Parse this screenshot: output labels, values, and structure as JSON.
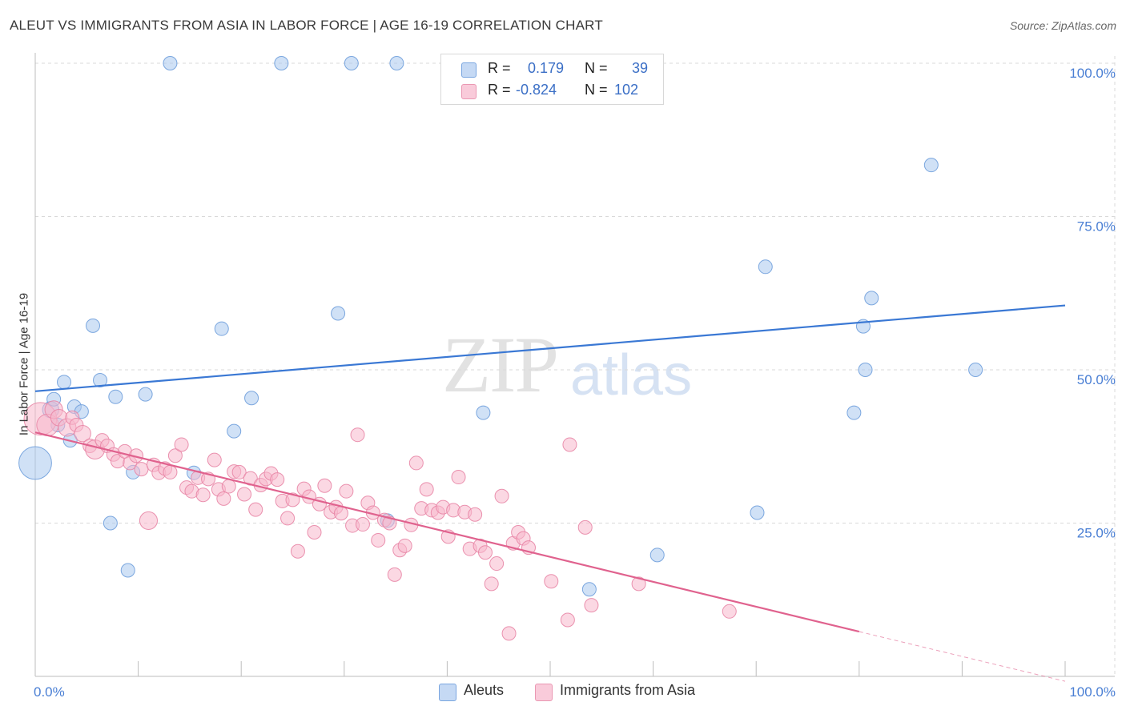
{
  "header": {
    "title": "ALEUT VS IMMIGRANTS FROM ASIA IN LABOR FORCE | AGE 16-19 CORRELATION CHART",
    "source": "Source: ZipAtlas.com"
  },
  "watermark": {
    "zip": "ZIP",
    "atlas": "atlas"
  },
  "legend": {
    "aleut": {
      "r_label": "R =",
      "r_value": "0.179",
      "n_label": "N =",
      "n_value": "39"
    },
    "asia": {
      "r_label": "R =",
      "r_value": "-0.824",
      "n_label": "N =",
      "n_value": "102"
    }
  },
  "bottom_legend": {
    "aleut": "Aleuts",
    "asia": "Immigrants from Asia"
  },
  "colors": {
    "aleut_fill": "#aac8ef",
    "aleut_stroke": "#6f9fdc",
    "aleut_line": "#3a78d4",
    "asia_fill": "#f7b8cc",
    "asia_stroke": "#e886a6",
    "asia_line": "#e0628e",
    "axis_text": "#4a7fd4",
    "grid": "#d9d9d9"
  },
  "chart_data": {
    "type": "scatter",
    "title": "ALEUT VS IMMIGRANTS FROM ASIA IN LABOR FORCE | AGE 16-19 CORRELATION CHART",
    "xlabel": "",
    "ylabel": "In Labor Force | Age 16-19",
    "xlim": [
      0,
      100
    ],
    "ylim": [
      0,
      102
    ],
    "x_tick_labels": [
      "0.0%",
      "100.0%"
    ],
    "y_ticks": [
      25,
      50,
      75,
      100
    ],
    "y_tick_labels": [
      "25.0%",
      "50.0%",
      "75.0%",
      "100.0%"
    ],
    "series": [
      {
        "name": "Aleuts",
        "r": 0.179,
        "n": 39,
        "trend": {
          "x0": 0,
          "y0": 46.5,
          "x1": 100,
          "y1": 60.5
        },
        "points": [
          [
            0,
            34.8,
            2.4
          ],
          [
            1.5,
            43.5,
            1.2
          ],
          [
            1.8,
            45.2,
            1.0
          ],
          [
            2.2,
            41,
            1.0
          ],
          [
            2.8,
            48,
            1.0
          ],
          [
            3.4,
            38.5,
            1.0
          ],
          [
            3.8,
            44,
            1.0
          ],
          [
            4.5,
            43.2,
            1.0
          ],
          [
            5.6,
            57.2,
            1.0
          ],
          [
            6.3,
            48.3,
            1.0
          ],
          [
            7.3,
            25,
            1.0
          ],
          [
            7.8,
            45.6,
            1.0
          ],
          [
            9.0,
            17.3,
            1.0
          ],
          [
            9.5,
            33.3,
            1.0
          ],
          [
            10.7,
            46,
            1.0
          ],
          [
            13.1,
            100,
            1.0
          ],
          [
            15.4,
            33.2,
            1.0
          ],
          [
            18.1,
            56.7,
            1.0
          ],
          [
            19.3,
            40,
            1.0
          ],
          [
            21.0,
            45.4,
            1.0
          ],
          [
            23.9,
            100,
            1.0
          ],
          [
            29.4,
            59.2,
            1.0
          ],
          [
            30.7,
            100,
            1.0
          ],
          [
            34.2,
            25.4,
            1.0
          ],
          [
            35.1,
            100,
            1.0
          ],
          [
            43.5,
            43,
            1.0
          ],
          [
            53.8,
            14.2,
            1.0
          ],
          [
            60.4,
            19.8,
            1.0
          ],
          [
            70.1,
            26.7,
            1.0
          ],
          [
            70.9,
            66.8,
            1.0
          ],
          [
            79.5,
            43,
            1.0
          ],
          [
            80.4,
            57.1,
            1.0
          ],
          [
            80.6,
            50,
            1.0
          ],
          [
            81.2,
            61.7,
            1.0
          ],
          [
            87.0,
            83.4,
            1.0
          ],
          [
            91.3,
            50,
            1.0
          ]
        ]
      },
      {
        "name": "Immigrants from Asia",
        "r": -0.824,
        "n": 102,
        "trend": {
          "x0": 0,
          "y0": 39.8,
          "x1": 80,
          "y1": 7.3,
          "dash_to_x": 100,
          "dash_to_y": -0.8
        },
        "points": [
          [
            0.5,
            42,
            2.4
          ],
          [
            1.2,
            41,
            1.6
          ],
          [
            1.8,
            43.5,
            1.3
          ],
          [
            2.3,
            42.2,
            1.2
          ],
          [
            3.1,
            40.6,
            1.3
          ],
          [
            3.6,
            42.2,
            1.0
          ],
          [
            4.0,
            41,
            1.0
          ],
          [
            4.6,
            39.6,
            1.2
          ],
          [
            5.3,
            37.6,
            1.0
          ],
          [
            5.8,
            37,
            1.4
          ],
          [
            6.5,
            38.5,
            1.0
          ],
          [
            7.0,
            37.6,
            1.0
          ],
          [
            7.6,
            36.2,
            1.0
          ],
          [
            8.0,
            35.1,
            1.0
          ],
          [
            8.7,
            36.7,
            1.0
          ],
          [
            9.2,
            34.8,
            1.0
          ],
          [
            9.8,
            36,
            1.0
          ],
          [
            10.3,
            33.8,
            1.0
          ],
          [
            11.0,
            25.4,
            1.3
          ],
          [
            11.5,
            34.5,
            1.0
          ],
          [
            12.0,
            33.2,
            1.0
          ],
          [
            12.6,
            33.9,
            1.0
          ],
          [
            13.1,
            33.3,
            1.0
          ],
          [
            13.6,
            36,
            1.0
          ],
          [
            14.2,
            37.8,
            1.0
          ],
          [
            14.7,
            30.8,
            1.0
          ],
          [
            15.2,
            30.2,
            1.0
          ],
          [
            15.8,
            32.4,
            1.0
          ],
          [
            16.3,
            29.6,
            1.0
          ],
          [
            16.8,
            32.2,
            1.0
          ],
          [
            17.4,
            35.3,
            1.0
          ],
          [
            17.8,
            30.5,
            1.0
          ],
          [
            18.3,
            29,
            1.0
          ],
          [
            18.8,
            31,
            1.0
          ],
          [
            19.3,
            33.4,
            1.0
          ],
          [
            19.8,
            33.3,
            1.0
          ],
          [
            20.3,
            29.7,
            1.0
          ],
          [
            20.9,
            32.3,
            1.0
          ],
          [
            21.4,
            27.2,
            1.0
          ],
          [
            21.9,
            31.2,
            1.0
          ],
          [
            22.4,
            32.2,
            1.0
          ],
          [
            22.9,
            33.1,
            1.0
          ],
          [
            23.5,
            32.1,
            1.0
          ],
          [
            24.0,
            28.6,
            1.0
          ],
          [
            24.5,
            25.8,
            1.0
          ],
          [
            25.0,
            28.8,
            1.0
          ],
          [
            25.5,
            20.4,
            1.0
          ],
          [
            26.1,
            30.6,
            1.0
          ],
          [
            26.6,
            29.3,
            1.0
          ],
          [
            27.1,
            23.5,
            1.0
          ],
          [
            27.6,
            28.1,
            1.0
          ],
          [
            28.1,
            31.1,
            1.0
          ],
          [
            28.7,
            26.8,
            1.0
          ],
          [
            29.2,
            27.6,
            1.0
          ],
          [
            29.7,
            26.6,
            1.0
          ],
          [
            30.2,
            30.2,
            1.0
          ],
          [
            30.8,
            24.6,
            1.0
          ],
          [
            31.3,
            39.4,
            1.0
          ],
          [
            31.8,
            24.8,
            1.0
          ],
          [
            32.3,
            28.3,
            1.0
          ],
          [
            32.8,
            26.7,
            1.0
          ],
          [
            33.3,
            22.2,
            1.0
          ],
          [
            33.9,
            25.5,
            1.0
          ],
          [
            34.4,
            25,
            1.0
          ],
          [
            34.9,
            16.6,
            1.0
          ],
          [
            35.4,
            20.6,
            1.0
          ],
          [
            35.9,
            21.3,
            1.0
          ],
          [
            36.5,
            24.7,
            1.0
          ],
          [
            37.0,
            34.8,
            1.0
          ],
          [
            37.5,
            27.4,
            1.0
          ],
          [
            38.0,
            30.5,
            1.0
          ],
          [
            38.5,
            27.1,
            1.0
          ],
          [
            39.1,
            26.7,
            1.0
          ],
          [
            39.6,
            27.6,
            1.0
          ],
          [
            40.1,
            22.8,
            1.0
          ],
          [
            40.6,
            27.1,
            1.0
          ],
          [
            41.1,
            32.5,
            1.0
          ],
          [
            41.7,
            26.8,
            1.0
          ],
          [
            42.2,
            20.8,
            1.0
          ],
          [
            42.7,
            26.4,
            1.0
          ],
          [
            43.2,
            21.3,
            1.0
          ],
          [
            43.7,
            20.2,
            1.0
          ],
          [
            44.3,
            15.1,
            1.0
          ],
          [
            44.8,
            18.4,
            1.0
          ],
          [
            45.3,
            29.4,
            1.0
          ],
          [
            46.0,
            7,
            1.0
          ],
          [
            46.4,
            21.7,
            1.0
          ],
          [
            46.9,
            23.5,
            1.0
          ],
          [
            47.4,
            22.5,
            1.0
          ],
          [
            47.9,
            21,
            1.0
          ],
          [
            50.1,
            15.5,
            1.0
          ],
          [
            51.7,
            9.2,
            1.0
          ],
          [
            51.9,
            37.8,
            1.0
          ],
          [
            53.4,
            24.3,
            1.0
          ],
          [
            54.0,
            11.6,
            1.0
          ],
          [
            58.6,
            15.1,
            1.0
          ],
          [
            67.4,
            10.6,
            1.0
          ]
        ]
      }
    ]
  }
}
